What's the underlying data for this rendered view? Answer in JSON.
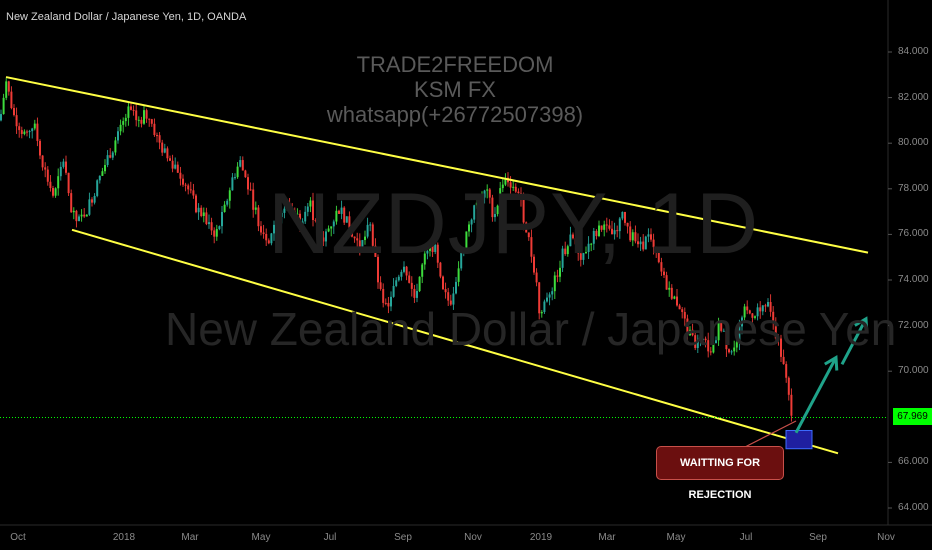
{
  "header": {
    "title": "New Zealand Dollar / Japanese Yen, 1D, OANDA"
  },
  "watermark": {
    "symbol": "NZDJPY, 1D",
    "name": "New Zealand Dollar / Japanese Yen"
  },
  "branding": {
    "lines": [
      "TRADE2FREEDOM",
      "KSM FX",
      "whatsapp(+26772507398)"
    ]
  },
  "annotation": {
    "label": "WAITTING FOR REJECTION"
  },
  "colors": {
    "up": "#26a69a",
    "up_bright": "#3ddc3d",
    "down": "#ef3b36",
    "channel": "#ffff44",
    "arrow": "#1fa38a",
    "current_price_line": "#00ff00",
    "box_fill": "#1f1fa0",
    "box_border": "#3c6cff"
  },
  "chart_data": {
    "type": "candlestick",
    "title": "New Zealand Dollar / Japanese Yen, 1D, OANDA",
    "current_price": 67.969,
    "ylim": [
      63.8,
      85.2
    ],
    "y_ticks": [
      {
        "label": "84.000",
        "value": 84
      },
      {
        "label": "82.000",
        "value": 82
      },
      {
        "label": "80.000",
        "value": 80
      },
      {
        "label": "78.000",
        "value": 78
      },
      {
        "label": "76.000",
        "value": 76
      },
      {
        "label": "74.000",
        "value": 74
      },
      {
        "label": "72.000",
        "value": 72
      },
      {
        "label": "70.000",
        "value": 70
      },
      {
        "label": "66.000",
        "value": 66
      },
      {
        "label": "64.000",
        "value": 64
      }
    ],
    "x_ticks": [
      "Oct",
      "2018",
      "Mar",
      "May",
      "Jul",
      "Sep",
      "Nov",
      "2019",
      "Mar",
      "May",
      "Jul",
      "Sep",
      "Nov"
    ],
    "price_path": [
      [
        0,
        81.0
      ],
      [
        6,
        82.7
      ],
      [
        14,
        81.2
      ],
      [
        24,
        80.4
      ],
      [
        34,
        80.8
      ],
      [
        44,
        78.9
      ],
      [
        54,
        77.6
      ],
      [
        64,
        79.4
      ],
      [
        70,
        77.0
      ],
      [
        78,
        76.5
      ],
      [
        88,
        77.2
      ],
      [
        98,
        78.3
      ],
      [
        108,
        79.4
      ],
      [
        118,
        80.3
      ],
      [
        128,
        81.4
      ],
      [
        138,
        81.0
      ],
      [
        148,
        81.3
      ],
      [
        158,
        80.1
      ],
      [
        168,
        79.3
      ],
      [
        176,
        79.0
      ],
      [
        186,
        78.2
      ],
      [
        196,
        77.2
      ],
      [
        206,
        76.6
      ],
      [
        216,
        76.0
      ],
      [
        224,
        77.0
      ],
      [
        232,
        78.4
      ],
      [
        240,
        79.2
      ],
      [
        250,
        77.8
      ],
      [
        260,
        76.4
      ],
      [
        268,
        75.8
      ],
      [
        278,
        76.8
      ],
      [
        288,
        77.3
      ],
      [
        300,
        76.6
      ],
      [
        310,
        77.4
      ],
      [
        320,
        75.6
      ],
      [
        330,
        76.4
      ],
      [
        340,
        77.2
      ],
      [
        350,
        76.2
      ],
      [
        360,
        75.4
      ],
      [
        370,
        76.4
      ],
      [
        380,
        73.4
      ],
      [
        388,
        72.6
      ],
      [
        396,
        74.0
      ],
      [
        404,
        74.8
      ],
      [
        414,
        73.2
      ],
      [
        424,
        74.9
      ],
      [
        434,
        75.6
      ],
      [
        442,
        73.5
      ],
      [
        450,
        73.0
      ],
      [
        460,
        74.8
      ],
      [
        468,
        76.4
      ],
      [
        476,
        77.3
      ],
      [
        486,
        77.9
      ],
      [
        494,
        76.8
      ],
      [
        504,
        78.6
      ],
      [
        510,
        78.3
      ],
      [
        518,
        77.9
      ],
      [
        528,
        75.9
      ],
      [
        536,
        74.1
      ],
      [
        540,
        72.3
      ],
      [
        546,
        73.3
      ],
      [
        554,
        73.8
      ],
      [
        562,
        75.1
      ],
      [
        572,
        75.9
      ],
      [
        582,
        75.0
      ],
      [
        592,
        75.9
      ],
      [
        602,
        76.3
      ],
      [
        612,
        76.0
      ],
      [
        622,
        76.8
      ],
      [
        630,
        76.0
      ],
      [
        640,
        75.4
      ],
      [
        648,
        75.9
      ],
      [
        656,
        75.0
      ],
      [
        664,
        74.0
      ],
      [
        672,
        73.4
      ],
      [
        680,
        72.8
      ],
      [
        688,
        71.7
      ],
      [
        696,
        71.1
      ],
      [
        704,
        71.3
      ],
      [
        712,
        70.8
      ],
      [
        720,
        72.2
      ],
      [
        728,
        70.9
      ],
      [
        736,
        71.3
      ],
      [
        744,
        72.6
      ],
      [
        752,
        72.5
      ],
      [
        760,
        72.8
      ],
      [
        768,
        72.8
      ],
      [
        774,
        72.0
      ],
      [
        780,
        71.0
      ],
      [
        786,
        69.6
      ],
      [
        790,
        68.5
      ],
      [
        794,
        67.97
      ]
    ],
    "channel_upper": [
      [
        6,
        82.9
      ],
      [
        868,
        75.2
      ]
    ],
    "channel_lower": [
      [
        72,
        76.2
      ],
      [
        838,
        66.4
      ]
    ],
    "projection_arrows": [
      [
        [
          796,
          67.3
        ],
        [
          836,
          70.6
        ]
      ],
      [
        [
          842,
          70.3
        ],
        [
          866,
          72.3
        ]
      ]
    ],
    "target_box": {
      "x": [
        786,
        812
      ],
      "y": [
        66.6,
        67.4
      ]
    }
  }
}
